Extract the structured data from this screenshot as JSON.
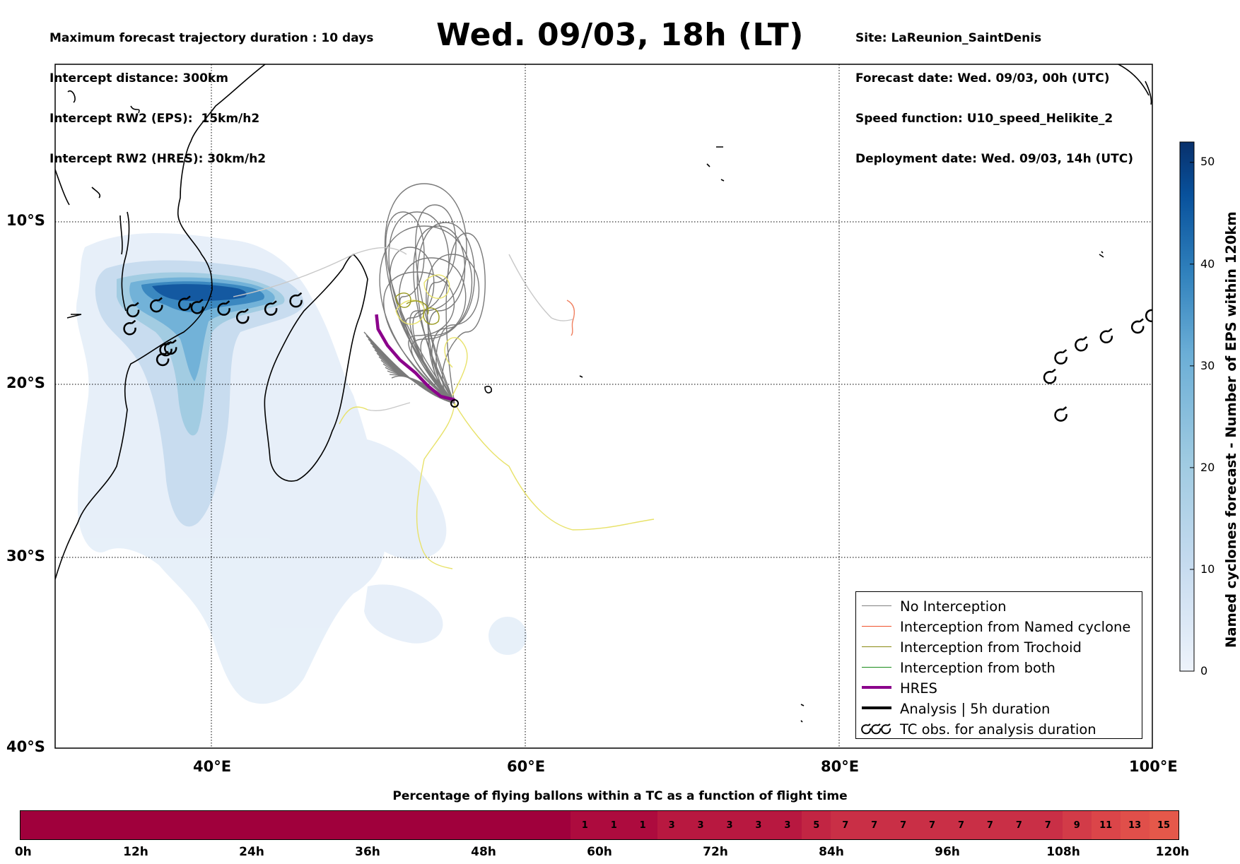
{
  "header_left": [
    "Maximum forecast trajectory duration : 10 days",
    "Intercept distance: 300km",
    "Intercept RW2 (EPS):  15km/h2",
    "Intercept RW2 (HRES): 30km/h2"
  ],
  "header_right": [
    "Site: LaReunion_SaintDenis",
    "Forecast date: Wed. 09/03, 00h (UTC)",
    "Speed function: U10_speed_Helikite_2",
    "Deployment date: Wed. 09/03, 14h (UTC)"
  ],
  "title": "Wed. 09/03, 18h (LT)",
  "map": {
    "lat_labels": [
      "10°S",
      "20°S",
      "30°S",
      "40°S"
    ],
    "lon_labels": [
      "40°E",
      "60°E",
      "80°E",
      "100°E"
    ],
    "lon_range": [
      30,
      100
    ],
    "lat_range": [
      -40,
      -0.1
    ]
  },
  "legend": [
    {
      "label": "No Interception",
      "color": "#808080",
      "style": "thin"
    },
    {
      "label": "Interception from Named cyclone",
      "color": "#f0522d",
      "style": "thin"
    },
    {
      "label": "Interception from Trochoid",
      "color": "#8a8a10",
      "style": "thin"
    },
    {
      "label": "Interception from both",
      "color": "#1a8c1a",
      "style": "thin"
    },
    {
      "label": "HRES",
      "color": "#8b008b",
      "style": "thick"
    },
    {
      "label": "Analysis | 5h duration",
      "color": "#000000",
      "style": "thick"
    },
    {
      "label": "TC obs. for analysis duration",
      "color": "#000000",
      "style": "symbol"
    }
  ],
  "colorbar": {
    "title": "Named cyclones forecast - Number of EPS within 120km",
    "ticks": [
      "0",
      "10",
      "20",
      "30",
      "40",
      "50"
    ],
    "range": [
      0,
      52
    ],
    "colors": [
      "#eef3fb",
      "#c6dbef",
      "#9ecae1",
      "#6baed6",
      "#3182bd",
      "#08519c",
      "#08306b"
    ]
  },
  "bottom": {
    "title": "Percentage of flying ballons within a TC as a function of flight time",
    "cells": [
      "",
      "",
      "",
      "",
      "",
      "",
      "",
      "",
      "",
      "",
      "",
      "",
      "",
      "",
      "",
      "",
      "",
      "",
      "",
      "1",
      "1",
      "1",
      "3",
      "3",
      "3",
      "3",
      "3",
      "5",
      "7",
      "7",
      "7",
      "7",
      "7",
      "7",
      "7",
      "7",
      "9",
      "11",
      "13",
      "15"
    ],
    "hour_labels": [
      "0h",
      "12h",
      "24h",
      "36h",
      "48h",
      "60h",
      "72h",
      "84h",
      "96h",
      "108h",
      "120h"
    ]
  },
  "tc_obs": {
    "west": [
      [
        35.0,
        -15.5
      ],
      [
        36.5,
        -15.2
      ],
      [
        38.3,
        -15.1
      ],
      [
        39.1,
        -15.3
      ],
      [
        40.8,
        -15.4
      ],
      [
        42.0,
        -15.9
      ],
      [
        43.8,
        -15.4
      ],
      [
        45.4,
        -14.9
      ],
      [
        34.8,
        -16.6
      ],
      [
        37.4,
        -17.8
      ],
      [
        37.1,
        -17.9
      ],
      [
        36.9,
        -18.5
      ]
    ],
    "east": [
      [
        93.5,
        -19.6
      ],
      [
        94.2,
        -18.4
      ],
      [
        95.5,
        -17.6
      ],
      [
        97.1,
        -17.1
      ],
      [
        99.1,
        -16.5
      ],
      [
        100.0,
        -15.8
      ],
      [
        94.2,
        -21.8
      ]
    ]
  },
  "hres_track": [
    [
      50.5,
      -15.7
    ],
    [
      50.6,
      -16.6
    ],
    [
      51.2,
      -17.6
    ],
    [
      52.0,
      -18.5
    ],
    [
      53.0,
      -19.3
    ],
    [
      53.8,
      -20.1
    ],
    [
      54.6,
      -20.7
    ],
    [
      55.5,
      -20.9
    ]
  ]
}
